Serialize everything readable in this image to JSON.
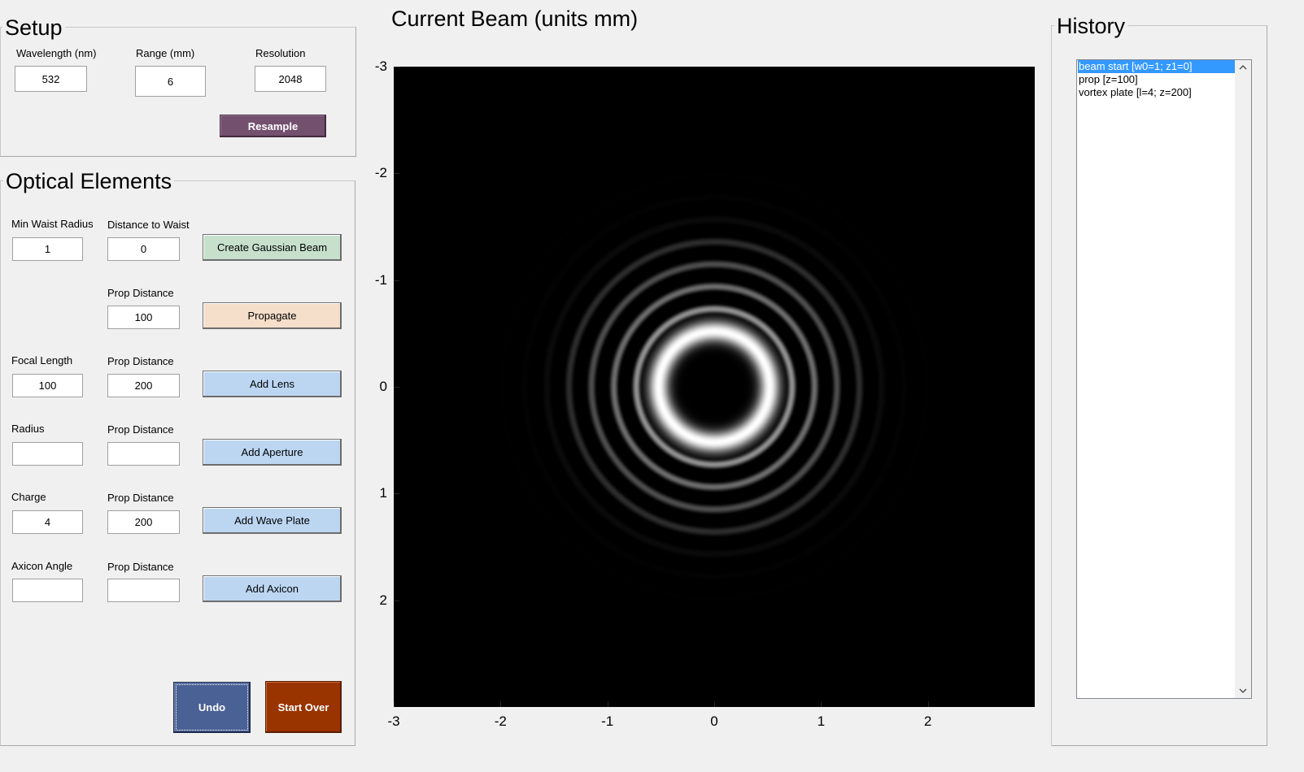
{
  "setup": {
    "title": "Setup",
    "wavelength": {
      "label": "Wavelength (nm)",
      "value": "532"
    },
    "range": {
      "label": "Range (mm)",
      "value": "6"
    },
    "resolution": {
      "label": "Resolution",
      "value": "2048"
    },
    "resample_label": "Resample"
  },
  "optical": {
    "title": "Optical Elements",
    "gaussian": {
      "waist_label": "Min Waist Radius",
      "waist_value": "1",
      "distance_label": "Distance to Waist",
      "distance_value": "0",
      "button_label": "Create Gaussian Beam"
    },
    "propagate": {
      "prop_label": "Prop Distance",
      "prop_value": "100",
      "button_label": "Propagate"
    },
    "lens": {
      "param_label": "Focal Length",
      "param_value": "100",
      "prop_label": "Prop Distance",
      "prop_value": "200",
      "button_label": "Add Lens"
    },
    "aperture": {
      "param_label": "Radius",
      "param_value": "",
      "prop_label": "Prop Distance",
      "prop_value": "",
      "button_label": "Add Aperture"
    },
    "waveplate": {
      "param_label": "Charge",
      "param_value": "4",
      "prop_label": "Prop Distance",
      "prop_value": "200",
      "button_label": "Add Wave Plate"
    },
    "axicon": {
      "param_label": "Axicon Angle",
      "param_value": "",
      "prop_label": "Prop Distance",
      "prop_value": "",
      "button_label": "Add Axicon"
    },
    "undo_label": "Undo",
    "start_over_label": "Start Over"
  },
  "plot": {
    "title": "Current Beam (units mm)",
    "y_ticks": [
      "-3",
      "-2",
      "-1",
      "0",
      "1",
      "2"
    ],
    "x_ticks": [
      "-3",
      "-2",
      "-1",
      "0",
      "1",
      "2"
    ],
    "beam": {
      "type": "vortex-intensity-image",
      "topological_charge": 4,
      "colormap": "gray",
      "extent_mm": [
        -3,
        3
      ]
    }
  },
  "history": {
    "title": "History",
    "items": [
      "beam start  [w0=1; z1=0]",
      "prop  [z=100]",
      "vortex plate  [l=4; z=200]"
    ],
    "selected_index": 0,
    "scroll_up": "^",
    "scroll_down": "v"
  },
  "colors": {
    "background": "#f0f0f0",
    "gaussian_button": "#c6e0cc",
    "propagate_button": "#f5deca",
    "element_button": "#bcd6f2",
    "resample_button": "#74506f",
    "undo_button": "#4a6196",
    "start_over_button": "#993300",
    "selection": "#3399ff"
  }
}
